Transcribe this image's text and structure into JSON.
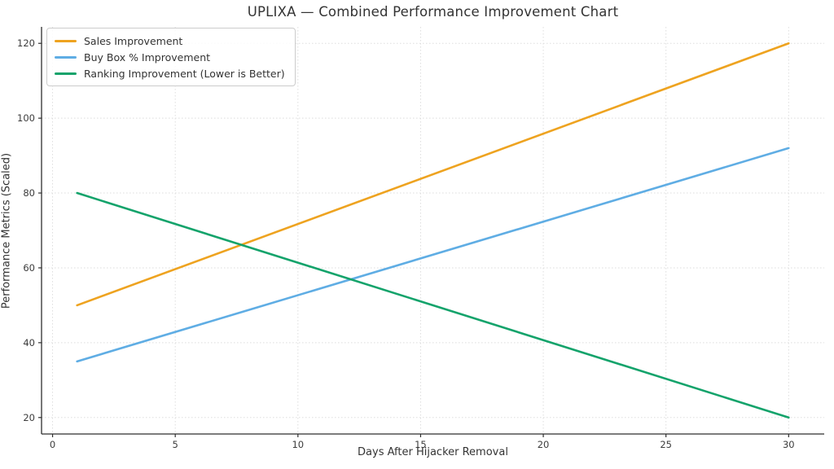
{
  "figure": {
    "background": "#ffffff"
  },
  "chart_data": {
    "type": "line",
    "title": "UPLIXA — Combined Performance Improvement Chart",
    "xlabel": "Days After Hijacker Removal",
    "ylabel": "Performance Metrics (Scaled)",
    "series": [
      {
        "name": "Sales Improvement",
        "color": "#EEA320",
        "x": [
          1,
          30
        ],
        "values": [
          50,
          120
        ]
      },
      {
        "name": "Buy Box % Improvement",
        "color": "#5FADE4",
        "x": [
          1,
          30
        ],
        "values": [
          35,
          92
        ]
      },
      {
        "name": "Ranking Improvement (Lower is Better)",
        "color": "#14A36B",
        "x": [
          1,
          30
        ],
        "values": [
          80,
          20
        ]
      }
    ],
    "x_ticks": [
      0,
      5,
      10,
      15,
      20,
      25,
      30
    ],
    "y_ticks": [
      20,
      40,
      60,
      80,
      100,
      120
    ],
    "xlim": [
      -0.45,
      31.45
    ],
    "ylim": [
      15.6,
      124.4
    ],
    "grid": true,
    "grid_color": "#dddddd",
    "spine_color": "#2e2e2e",
    "tick_label_color": "#3c3c3c",
    "line_width": 2.6,
    "legend_position": "upper left"
  }
}
